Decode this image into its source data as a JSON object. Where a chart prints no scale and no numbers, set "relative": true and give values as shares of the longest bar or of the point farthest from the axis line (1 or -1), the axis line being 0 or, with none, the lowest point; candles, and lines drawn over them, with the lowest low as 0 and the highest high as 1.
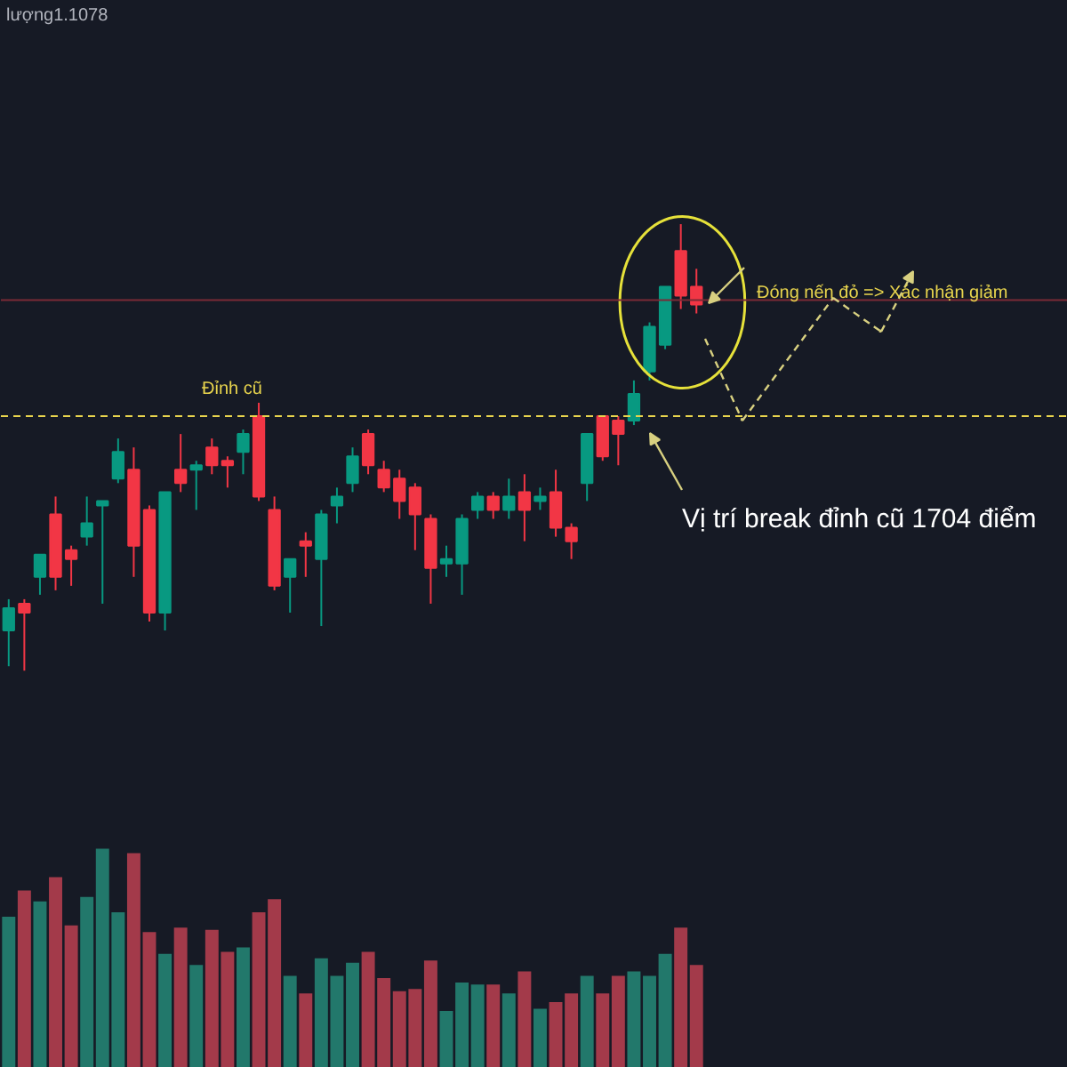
{
  "chart_data": [
    {
      "type": "candlestick",
      "relative": true,
      "tick_labels": false,
      "categories": [
        null,
        null,
        null,
        null,
        null,
        null,
        null,
        null,
        null,
        null,
        null,
        null,
        null,
        null,
        null,
        null,
        null,
        null,
        null,
        null,
        null,
        null,
        null,
        null,
        null,
        null,
        null,
        null,
        null,
        null,
        null,
        null,
        null,
        null,
        null,
        null,
        null,
        null,
        null,
        null,
        null,
        null,
        null,
        null,
        null
      ],
      "ohlc": [
        [
          0.09,
          0.16,
          0.01,
          0.14
        ],
        [
          0.15,
          0.16,
          0,
          0.13
        ],
        [
          0.21,
          0.26,
          0.17,
          0.26
        ],
        [
          0.35,
          0.39,
          0.18,
          0.21
        ],
        [
          0.27,
          0.28,
          0.19,
          0.25
        ],
        [
          0.3,
          0.39,
          0.28,
          0.33
        ],
        [
          0.37,
          0.38,
          0.15,
          0.38
        ],
        [
          0.43,
          0.52,
          0.42,
          0.49
        ],
        [
          0.45,
          0.5,
          0.21,
          0.28
        ],
        [
          0.36,
          0.37,
          0.11,
          0.13
        ],
        [
          0.13,
          0.4,
          0.09,
          0.4
        ],
        [
          0.45,
          0.53,
          0.4,
          0.42
        ],
        [
          0.45,
          0.47,
          0.36,
          0.46
        ],
        [
          0.5,
          0.52,
          0.44,
          0.46
        ],
        [
          0.47,
          0.48,
          0.41,
          0.46
        ],
        [
          0.49,
          0.54,
          0.44,
          0.53
        ],
        [
          0.57,
          0.6,
          0.38,
          0.39
        ],
        [
          0.36,
          0.39,
          0.18,
          0.19
        ],
        [
          0.21,
          0.25,
          0.13,
          0.25
        ],
        [
          0.29,
          0.31,
          0.21,
          0.28
        ],
        [
          0.25,
          0.36,
          0.1,
          0.35
        ],
        [
          0.37,
          0.41,
          0.33,
          0.39
        ],
        [
          0.42,
          0.5,
          0.4,
          0.48
        ],
        [
          0.53,
          0.54,
          0.44,
          0.46
        ],
        [
          0.45,
          0.47,
          0.4,
          0.41
        ],
        [
          0.43,
          0.45,
          0.34,
          0.38
        ],
        [
          0.41,
          0.42,
          0.27,
          0.35
        ],
        [
          0.34,
          0.35,
          0.15,
          0.23
        ],
        [
          0.24,
          0.28,
          0.21,
          0.25
        ],
        [
          0.24,
          0.35,
          0.17,
          0.34
        ],
        [
          0.36,
          0.4,
          0.34,
          0.39
        ],
        [
          0.39,
          0.4,
          0.34,
          0.36
        ],
        [
          0.36,
          0.43,
          0.34,
          0.39
        ],
        [
          0.4,
          0.44,
          0.29,
          0.36
        ],
        [
          0.38,
          0.41,
          0.36,
          0.39
        ],
        [
          0.4,
          0.45,
          0.3,
          0.32
        ],
        [
          0.32,
          0.33,
          0.25,
          0.29
        ],
        [
          0.42,
          0.53,
          0.38,
          0.53
        ],
        [
          0.57,
          0.57,
          0.47,
          0.48
        ],
        [
          0.56,
          0.57,
          0.46,
          0.53
        ],
        [
          0.56,
          0.65,
          0.55,
          0.62
        ],
        [
          0.67,
          0.78,
          0.65,
          0.77
        ],
        [
          0.73,
          0.86,
          0.72,
          0.86
        ],
        [
          0.94,
          1,
          0.81,
          0.84
        ],
        [
          0.86,
          0.9,
          0.8,
          0.82
        ]
      ],
      "colors": [
        "#089981",
        "#f23645",
        "#089981",
        "#f23645",
        "#f23645",
        "#089981",
        "#089981",
        "#089981",
        "#f23645",
        "#f23645",
        "#089981",
        "#f23645",
        "#089981",
        "#f23645",
        "#f23645",
        "#089981",
        "#f23645",
        "#f23645",
        "#089981",
        "#f23645",
        "#089981",
        "#089981",
        "#089981",
        "#f23645",
        "#f23645",
        "#f23645",
        "#f23645",
        "#f23645",
        "#089981",
        "#089981",
        "#089981",
        "#f23645",
        "#089981",
        "#f23645",
        "#089981",
        "#f23645",
        "#f23645",
        "#089981",
        "#f23645",
        "#f23645",
        "#089981",
        "#089981",
        "#089981",
        "#f23645",
        "#f23645"
      ],
      "ref_lines": [
        {
          "axis": "y",
          "value": 0.57,
          "color": "#e8d44d",
          "line_style": "dashed"
        },
        {
          "axis": "y",
          "value": 0.83,
          "color": "#7a2a36",
          "line_style": "solid"
        }
      ],
      "annotations": [
        "lượng1.1078",
        "Đỉnh cũ",
        "Đóng nến đỏ => Xác nhận giảm",
        "Vị trí break đỉnh cũ 1704 điểm"
      ]
    },
    {
      "type": "bar",
      "relative": true,
      "tick_labels": false,
      "categories": [
        null,
        null,
        null,
        null,
        null,
        null,
        null,
        null,
        null,
        null,
        null,
        null,
        null,
        null,
        null,
        null,
        null,
        null,
        null,
        null,
        null,
        null,
        null,
        null,
        null,
        null,
        null,
        null,
        null,
        null,
        null,
        null,
        null,
        null,
        null,
        null,
        null,
        null,
        null,
        null,
        null,
        null,
        null,
        null,
        null
      ],
      "values": [
        0.69,
        0.81,
        0.76,
        0.87,
        0.65,
        0.78,
        1,
        0.71,
        0.98,
        0.62,
        0.52,
        0.64,
        0.47,
        0.63,
        0.53,
        0.55,
        0.71,
        0.77,
        0.42,
        0.34,
        0.5,
        0.42,
        0.48,
        0.53,
        0.41,
        0.35,
        0.36,
        0.49,
        0.26,
        0.39,
        0.38,
        0.38,
        0.34,
        0.44,
        0.27,
        0.3,
        0.34,
        0.42,
        0.34,
        0.42,
        0.44,
        0.42,
        0.52,
        0.64,
        0.47
      ],
      "colors": [
        "#22786b",
        "#a33a4a",
        "#22786b",
        "#a33a4a",
        "#a33a4a",
        "#22786b",
        "#22786b",
        "#22786b",
        "#a33a4a",
        "#a33a4a",
        "#22786b",
        "#a33a4a",
        "#22786b",
        "#a33a4a",
        "#a33a4a",
        "#22786b",
        "#a33a4a",
        "#a33a4a",
        "#22786b",
        "#a33a4a",
        "#22786b",
        "#22786b",
        "#22786b",
        "#a33a4a",
        "#a33a4a",
        "#a33a4a",
        "#a33a4a",
        "#a33a4a",
        "#22786b",
        "#22786b",
        "#22786b",
        "#a33a4a",
        "#22786b",
        "#a33a4a",
        "#22786b",
        "#a33a4a",
        "#a33a4a",
        "#22786b",
        "#a33a4a",
        "#a33a4a",
        "#22786b",
        "#22786b",
        "#22786b",
        "#a33a4a",
        "#a33a4a"
      ]
    }
  ]
}
